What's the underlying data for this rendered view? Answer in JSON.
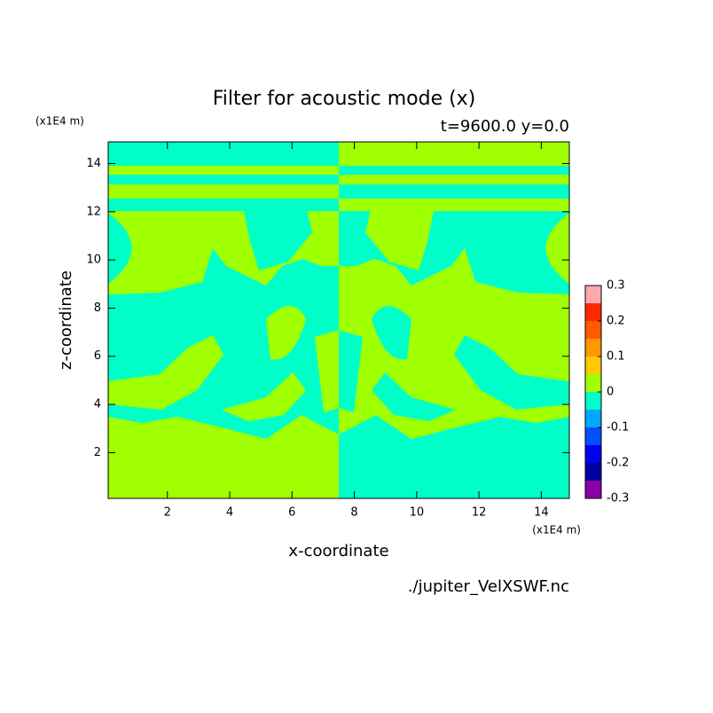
{
  "chart_data": {
    "type": "contour",
    "title": "Filter for acoustic mode (x)",
    "subtitle": "t=9600.0 y=0.0",
    "xlabel": "x-coordinate",
    "ylabel": "z-coordinate",
    "x_unit": "(x1E4 m)",
    "y_unit": "(x1E4 m)",
    "source": "./jupiter_VelXSWF.nc",
    "xlim": [
      0.1,
      14.9
    ],
    "ylim": [
      0.1,
      14.9
    ],
    "xticks": [
      2,
      4,
      6,
      8,
      10,
      12,
      14
    ],
    "yticks": [
      2,
      4,
      6,
      8,
      10,
      12,
      14
    ],
    "levels": [
      -0.3,
      -0.25,
      -0.2,
      -0.15,
      -0.1,
      -0.05,
      0,
      0.05,
      0.1,
      0.15,
      0.2,
      0.25,
      0.3
    ],
    "level_colors": [
      "#8c00a8",
      "#0000a0",
      "#0000f0",
      "#0050ff",
      "#00a8ff",
      "#00ffc8",
      "#a0ff00",
      "#ffc800",
      "#ff9600",
      "#ff5a00",
      "#ff2800",
      "#ffaaaa"
    ],
    "colorbar_ticks": [
      -0.3,
      -0.2,
      -0.1,
      0,
      0.1,
      0.2,
      0.3
    ]
  }
}
